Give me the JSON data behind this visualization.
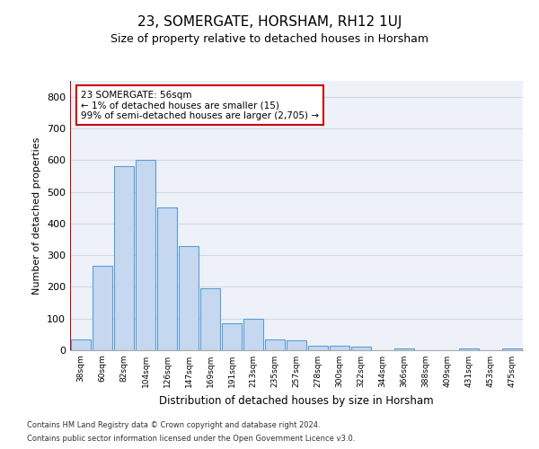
{
  "title": "23, SOMERGATE, HORSHAM, RH12 1UJ",
  "subtitle": "Size of property relative to detached houses in Horsham",
  "xlabel": "Distribution of detached houses by size in Horsham",
  "ylabel": "Number of detached properties",
  "categories": [
    "38sqm",
    "60sqm",
    "82sqm",
    "104sqm",
    "126sqm",
    "147sqm",
    "169sqm",
    "191sqm",
    "213sqm",
    "235sqm",
    "257sqm",
    "278sqm",
    "300sqm",
    "322sqm",
    "344sqm",
    "366sqm",
    "388sqm",
    "409sqm",
    "431sqm",
    "453sqm",
    "475sqm"
  ],
  "values": [
    35,
    265,
    580,
    600,
    450,
    330,
    195,
    85,
    100,
    35,
    30,
    15,
    15,
    10,
    0,
    5,
    0,
    0,
    5,
    0,
    5
  ],
  "bar_color": "#c5d8f0",
  "bar_edge_color": "#5a9fd4",
  "highlight_line_color": "#cc0000",
  "annotation_text": "23 SOMERGATE: 56sqm\n← 1% of detached houses are smaller (15)\n99% of semi-detached houses are larger (2,705) →",
  "annotation_box_edge": "#cc0000",
  "ylim": [
    0,
    850
  ],
  "yticks": [
    0,
    100,
    200,
    300,
    400,
    500,
    600,
    700,
    800
  ],
  "grid_color": "#d0d8e8",
  "bg_color": "#eef2f8",
  "footer_line1": "Contains HM Land Registry data © Crown copyright and database right 2024.",
  "footer_line2": "Contains public sector information licensed under the Open Government Licence v3.0."
}
